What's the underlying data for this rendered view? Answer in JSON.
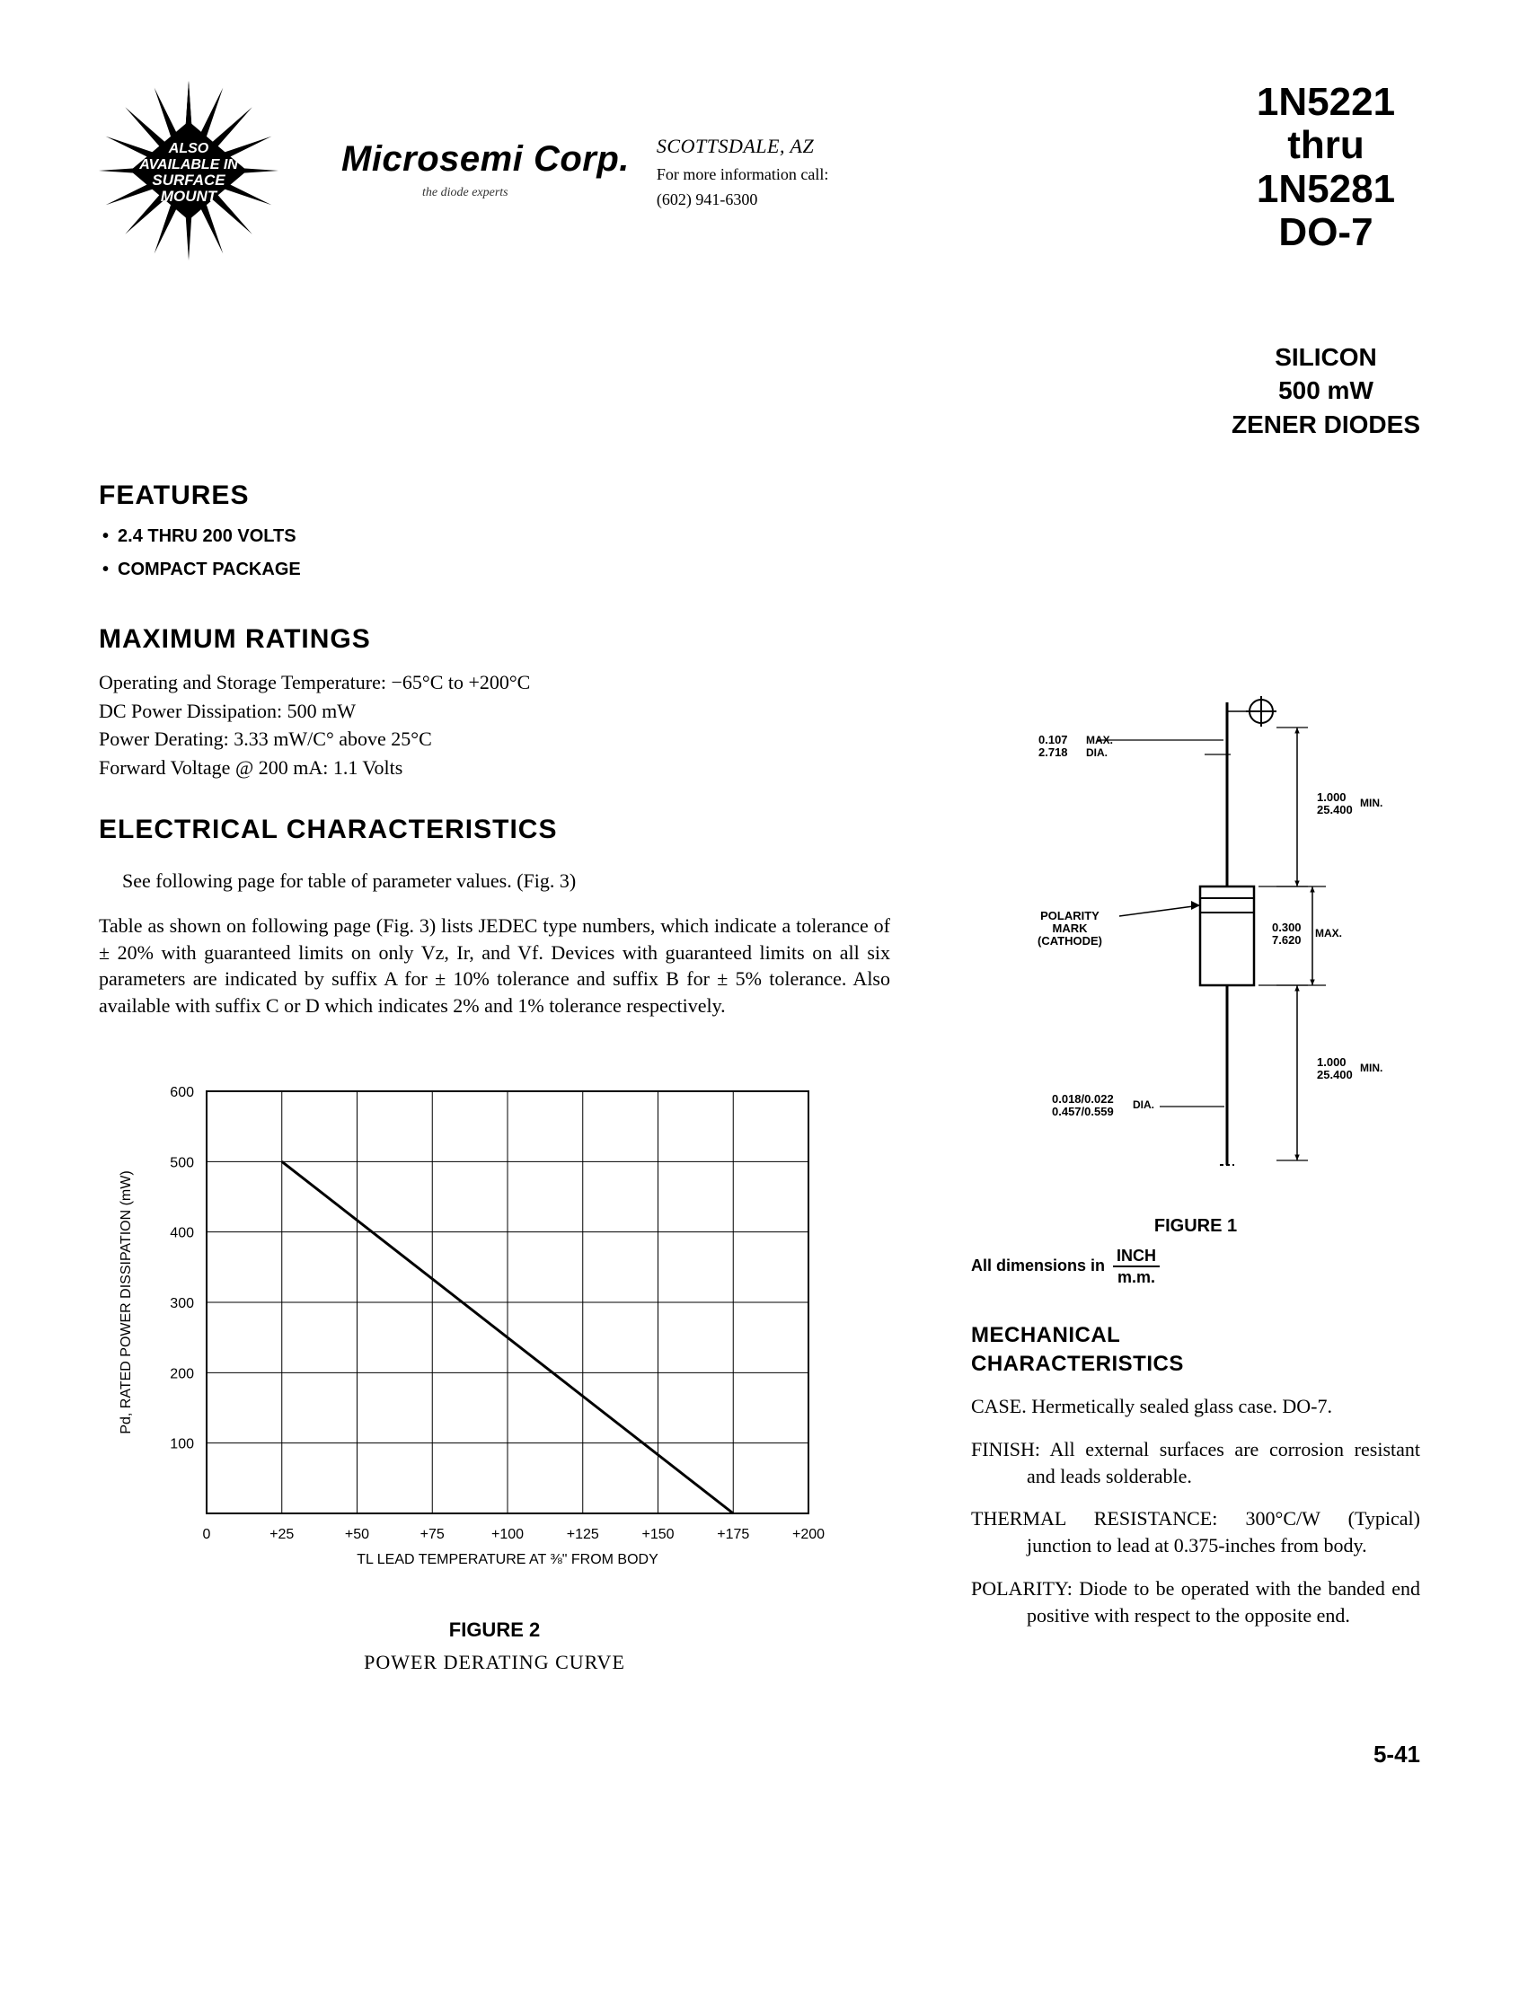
{
  "header": {
    "starburst_lines": [
      "ALSO",
      "AVAILABLE IN",
      "SURFACE",
      "MOUNT"
    ],
    "company_name": "Microsemi Corp.",
    "company_tagline": "the diode experts",
    "city": "SCOTTSDALE, AZ",
    "contact_line": "For more information call:",
    "phone": "(602) 941-6300",
    "part_top": "1N5221",
    "part_mid": "thru",
    "part_bot": "1N5281",
    "pkg": "DO-7",
    "subtype_l1": "SILICON",
    "subtype_l2": "500 mW",
    "subtype_l3": "ZENER DIODES"
  },
  "features": {
    "heading": "FEATURES",
    "items": [
      "2.4 THRU 200 VOLTS",
      "COMPACT PACKAGE"
    ]
  },
  "max_ratings": {
    "heading": "MAXIMUM RATINGS",
    "l1": "Operating and Storage Temperature: −65°C to +200°C",
    "l2": "DC Power Dissipation: 500 mW",
    "l3": "Power Derating: 3.33 mW/C° above 25°C",
    "l4": "Forward Voltage @ 200 mA: 1.1 Volts"
  },
  "elec": {
    "heading": "ELECTRICAL CHARACTERISTICS",
    "p1": "See following page for table of parameter values. (Fig. 3)",
    "p2": "Table as shown on following page (Fig. 3) lists JEDEC type numbers, which indicate a tolerance of ± 20% with guaranteed limits on only Vz, Ir, and Vf. Devices with guaranteed limits on all six parameters are indicated by suffix  A  for ± 10% tolerance and  suffix  B for ± 5% tolerance. Also available with suffix C or D which indicates 2% and 1% tolerance respectively."
  },
  "figure2": {
    "caption": "FIGURE 2",
    "subcaption": "POWER DERATING CURVE",
    "ylabel": "Pd, RATED POWER DISSIPATION (mW)",
    "xlabel": "TL LEAD TEMPERATURE AT ⅜\" FROM BODY",
    "xlim": [
      0,
      200
    ],
    "ylim": [
      0,
      600
    ],
    "xticks": [
      "0",
      "+25",
      "+50",
      "+75",
      "+100",
      "+125",
      "+150",
      "+175",
      "+200"
    ],
    "yticks": [
      "0",
      "100",
      "200",
      "300",
      "400",
      "500",
      "600"
    ],
    "line": [
      [
        25,
        500
      ],
      [
        175,
        0
      ]
    ],
    "axis_color": "#000000",
    "grid_color": "#000000",
    "line_color": "#000000",
    "line_width": 3,
    "grid_width": 1,
    "tick_fontsize": 16,
    "label_fontsize": 16
  },
  "figure1": {
    "caption": "FIGURE 1",
    "dims_label": "All dimensions in",
    "dims_top": "INCH",
    "dims_bot": "m.m.",
    "labels": {
      "top_dia": "0.107\n2.718",
      "top_dia_unit": "MAX.\nDIA.",
      "lead_len": "1.000\n25.400",
      "lead_len_unit": "MIN.",
      "body_len": "0.300\n7.620",
      "body_len_unit": "MAX.",
      "polarity": "POLARITY\nMARK\n(CATHODE)",
      "lead_len2": "1.000\n25.400",
      "lead_len2_unit": "MIN.",
      "wire_dia": "0.018/0.022\n0.457/0.559",
      "wire_dia_unit": "DIA."
    },
    "stroke": "#000000"
  },
  "mechanical": {
    "heading": "MECHANICAL CHARACTERISTICS",
    "items": [
      {
        "label": "CASE.",
        "text": "Hermetically sealed glass case. DO-7."
      },
      {
        "label": "FINISH:",
        "text": "All external surfaces are corrosion resistant and leads solderable."
      },
      {
        "label": "THERMAL RESISTANCE:",
        "text": "300°C/W (Typical) junction to lead at 0.375-inches from body."
      },
      {
        "label": "POLARITY:",
        "text": "Diode to be operated with the banded end positive with respect to the opposite end."
      }
    ]
  },
  "page_number": "5-41"
}
